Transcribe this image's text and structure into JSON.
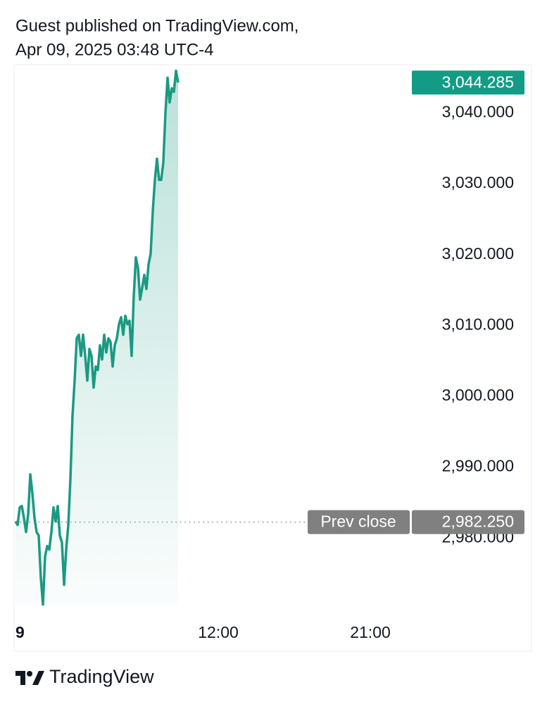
{
  "chart_data": {
    "type": "area",
    "title": "Guest published on TradingView.com,",
    "subtitle": "Apr 09, 2025 03:48 UTC-4",
    "footer": "TradingView",
    "color": "#1a9a82",
    "x": [
      0,
      0.125,
      0.25,
      0.375,
      0.5,
      0.625,
      0.75,
      0.875,
      1,
      1.125,
      1.25,
      1.375,
      1.5,
      1.625,
      1.75,
      1.875,
      2,
      2.125,
      2.25,
      2.375,
      2.5,
      2.625,
      2.75,
      2.875,
      3,
      3.125,
      3.25,
      3.375,
      3.5,
      3.625,
      3.75,
      3.875,
      4,
      4.125,
      4.25,
      4.375,
      4.5,
      4.625,
      4.75,
      4.875,
      5,
      5.125,
      5.25,
      5.375,
      5.5,
      5.625,
      5.75,
      5.875,
      6,
      6.125,
      6.25,
      6.375,
      6.5,
      6.625,
      6.75,
      6.875,
      7,
      7.125,
      7.25,
      7.375,
      7.5,
      7.625,
      7.75,
      7.875,
      8,
      8.125,
      8.25,
      8.375,
      8.5,
      8.625,
      8.75,
      8.875,
      9,
      9.125,
      9.25,
      9.375,
      9.5,
      9.625
    ],
    "values": [
      2982.35,
      2981.85,
      2984.33,
      2984.53,
      2982.84,
      2980.85,
      2983.34,
      2989.0,
      2986.32,
      2982.84,
      2980.85,
      2980.36,
      2974.39,
      2970.62,
      2977.38,
      2978.87,
      2978.37,
      2980.85,
      2984.33,
      2982.35,
      2984.53,
      2980.36,
      2979.36,
      2973.4,
      2978.37,
      2981.85,
      2988.31,
      2997.26,
      3002.23,
      3008.19,
      3008.69,
      3005.71,
      3008.69,
      3005.71,
      3002.23,
      3006.7,
      3005.71,
      3001.23,
      3004.21,
      3003.72,
      3007.2,
      3005.21,
      3008.69,
      3006.2,
      3008.19,
      3007.69,
      3004.21,
      3007.2,
      3008.19,
      3010.18,
      3011.17,
      3008.69,
      3011.37,
      3010.18,
      3010.68,
      3005.71,
      3014.16,
      3019.62,
      3018.13,
      3013.66,
      3015.35,
      3017.14,
      3015.15,
      3018.63,
      3020.12,
      3026.08,
      3030.56,
      3033.54,
      3030.56,
      3030.56,
      3033.04,
      3040.0,
      3044.97,
      3041.49,
      3043.48,
      3042.98,
      3045.96,
      3044.285
    ],
    "xlim": [
      0,
      30.5
    ],
    "xticks": [
      {
        "value": 0,
        "label": "9"
      },
      {
        "value": 12,
        "label": "12:00"
      },
      {
        "value": 21,
        "label": "21:00"
      }
    ],
    "ylim": [
      2969,
      3046.8
    ],
    "yticks": [
      {
        "value": 2980,
        "label": "2,980.000"
      },
      {
        "value": 2990,
        "label": "2,990.000"
      },
      {
        "value": 3000,
        "label": "3,000.000"
      },
      {
        "value": 3010,
        "label": "3,010.000"
      },
      {
        "value": 3020,
        "label": "3,020.000"
      },
      {
        "value": 3030,
        "label": "3,030.000"
      },
      {
        "value": 3040,
        "label": "3,040.000"
      }
    ],
    "last_price": {
      "value": 3044.285,
      "label": "3,044.285",
      "color": "#139c85"
    },
    "prev_close": {
      "name": "Prev close",
      "value": 2982.25,
      "label": "2,982.250",
      "color": "#808080"
    }
  }
}
